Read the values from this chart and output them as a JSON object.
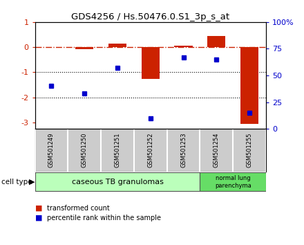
{
  "title": "GDS4256 / Hs.50476.0.S1_3p_s_at",
  "samples": [
    "GSM501249",
    "GSM501250",
    "GSM501251",
    "GSM501252",
    "GSM501253",
    "GSM501254",
    "GSM501255"
  ],
  "transformed_count": [
    0.0,
    -0.08,
    0.15,
    -1.25,
    0.07,
    0.45,
    -3.05
  ],
  "percentile_rank": [
    40,
    33,
    57,
    10,
    67,
    65,
    15
  ],
  "bar_color": "#cc2200",
  "dot_color": "#0000cc",
  "dashed_line_color": "#cc2200",
  "left_ylim": [
    -3.25,
    1.0
  ],
  "right_ylim": [
    0,
    100
  ],
  "right_yticks": [
    0,
    25,
    50,
    75,
    100
  ],
  "right_yticklabels": [
    "0",
    "25",
    "50",
    "75",
    "100%"
  ],
  "left_yticks": [
    -3,
    -2,
    -1,
    0,
    1
  ],
  "dotted_lines": [
    -1,
    -2
  ],
  "group1_label": "caseous TB granulomas",
  "group1_indices": [
    0,
    1,
    2,
    3,
    4
  ],
  "group2_label": "normal lung\nparenchyma",
  "group2_indices": [
    5,
    6
  ],
  "group1_color": "#bbffbb",
  "group2_color": "#66dd66",
  "sample_bg_color": "#cccccc",
  "cell_type_label": "cell type",
  "legend1_label": "transformed count",
  "legend2_label": "percentile rank within the sample",
  "background_color": "#ffffff",
  "plot_bg_color": "#ffffff"
}
